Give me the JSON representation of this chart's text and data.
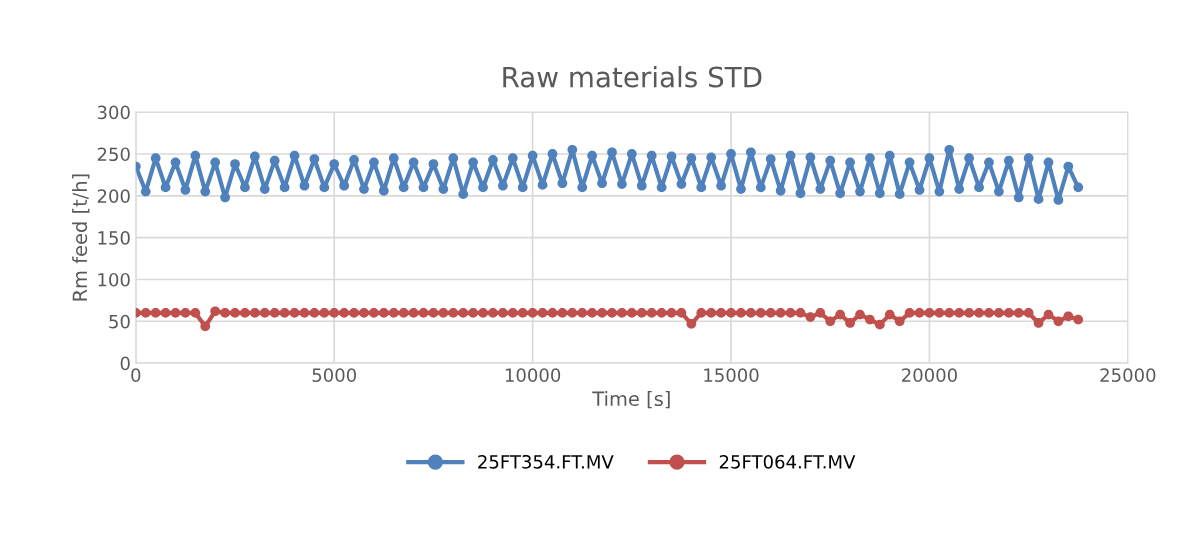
{
  "chart_data": {
    "type": "line",
    "title": "Raw materials STD",
    "xlabel": "Time [s]",
    "ylabel": "Rm feed [t/h]",
    "x": [
      0,
      250,
      500,
      750,
      1000,
      1250,
      1500,
      1750,
      2000,
      2250,
      2500,
      2750,
      3000,
      3250,
      3500,
      3750,
      4000,
      4250,
      4500,
      4750,
      5000,
      5250,
      5500,
      5750,
      6000,
      6250,
      6500,
      6750,
      7000,
      7250,
      7500,
      7750,
      8000,
      8250,
      8500,
      8750,
      9000,
      9250,
      9500,
      9750,
      10000,
      10250,
      10500,
      10750,
      11000,
      11250,
      11500,
      11750,
      12000,
      12250,
      12500,
      12750,
      13000,
      13250,
      13500,
      13750,
      14000,
      14250,
      14500,
      14750,
      15000,
      15250,
      15500,
      15750,
      16000,
      16250,
      16500,
      16750,
      17000,
      17250,
      17500,
      17750,
      18000,
      18250,
      18500,
      18750,
      19000,
      19250,
      19500,
      19750,
      20000,
      20250,
      20500,
      20750,
      21000,
      21250,
      21500,
      21750,
      22000,
      22250,
      22500,
      22750,
      23000,
      23250,
      23500,
      23750
    ],
    "series": [
      {
        "name": "25FT354.FT.MV",
        "color": "#4f81bd",
        "values": [
          235,
          205,
          245,
          210,
          240,
          207,
          248,
          205,
          240,
          198,
          238,
          210,
          247,
          208,
          242,
          210,
          248,
          212,
          244,
          210,
          238,
          212,
          243,
          208,
          240,
          206,
          245,
          210,
          240,
          210,
          238,
          208,
          245,
          202,
          240,
          210,
          243,
          212,
          245,
          210,
          248,
          213,
          250,
          215,
          255,
          210,
          248,
          215,
          252,
          214,
          250,
          212,
          248,
          210,
          247,
          214,
          245,
          210,
          246,
          212,
          250,
          208,
          252,
          210,
          244,
          206,
          248,
          203,
          246,
          208,
          242,
          203,
          240,
          205,
          245,
          203,
          248,
          202,
          240,
          207,
          245,
          205,
          255,
          208,
          245,
          210,
          240,
          205,
          242,
          198,
          245,
          196,
          240,
          195,
          235,
          210
        ]
      },
      {
        "name": "25FT064.FT.MV",
        "color": "#c0504d",
        "values": [
          60,
          60,
          60,
          60,
          60,
          60,
          60,
          44,
          62,
          60,
          60,
          60,
          60,
          60,
          60,
          60,
          60,
          60,
          60,
          60,
          60,
          60,
          60,
          60,
          60,
          60,
          60,
          60,
          60,
          60,
          60,
          60,
          60,
          60,
          60,
          60,
          60,
          60,
          60,
          60,
          60,
          60,
          60,
          60,
          60,
          60,
          60,
          60,
          60,
          60,
          60,
          60,
          60,
          60,
          60,
          60,
          47,
          60,
          60,
          60,
          60,
          60,
          60,
          60,
          60,
          60,
          60,
          60,
          55,
          60,
          50,
          58,
          48,
          58,
          52,
          46,
          58,
          50,
          60,
          60,
          60,
          60,
          60,
          60,
          60,
          60,
          60,
          60,
          60,
          60,
          60,
          48,
          58,
          50,
          56,
          52
        ]
      }
    ],
    "xlim": [
      0,
      25000
    ],
    "xticks": [
      0,
      5000,
      10000,
      15000,
      20000,
      25000
    ],
    "ylim": [
      0,
      300
    ],
    "yticks": [
      0,
      50,
      100,
      150,
      200,
      250,
      300
    ],
    "grid": true,
    "legend": "bottom",
    "marker": "circle",
    "line_style": "solid"
  }
}
